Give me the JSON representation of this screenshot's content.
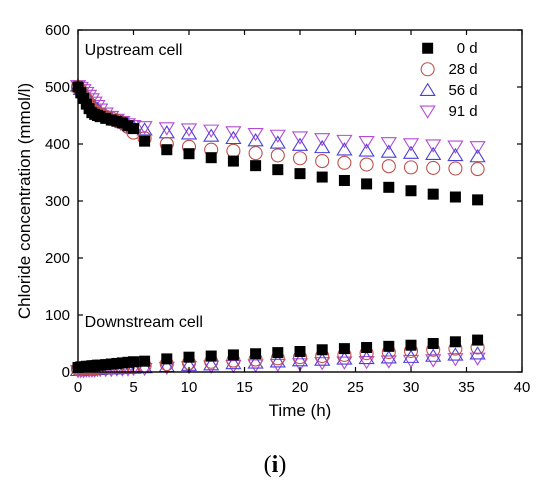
{
  "caption": {
    "open": "(",
    "letter": "i",
    "close": ")"
  },
  "chart_data": {
    "type": "scatter",
    "xlabel": "Time (h)",
    "ylabel": "Chloride concentration (mmol/l)",
    "xlim": [
      0,
      40
    ],
    "ylim": [
      0,
      600
    ],
    "xticks": [
      0,
      5,
      10,
      15,
      20,
      25,
      30,
      35,
      40
    ],
    "yticks": [
      0,
      100,
      200,
      300,
      400,
      500,
      600
    ],
    "grid": false,
    "legend_position": "top-right",
    "annotations": [
      "Upstream cell",
      "Downstream cell"
    ],
    "x": [
      0,
      0.25,
      0.5,
      0.75,
      1,
      1.25,
      1.5,
      1.75,
      2,
      2.5,
      3,
      3.5,
      4,
      4.5,
      5,
      6,
      8,
      10,
      12,
      14,
      16,
      18,
      20,
      22,
      24,
      26,
      28,
      30,
      32,
      34,
      36
    ],
    "series": [
      {
        "name": "0 d",
        "marker": "square-filled",
        "color": "#000000",
        "upstream": [
          500,
          490,
          480,
          470,
          462,
          455,
          452,
          450,
          448,
          445,
          442,
          440,
          437,
          432,
          427,
          405,
          390,
          383,
          376,
          370,
          362,
          355,
          348,
          342,
          336,
          330,
          324,
          318,
          312,
          307,
          302
        ],
        "downstream": [
          8,
          9,
          9,
          10,
          10,
          11,
          11,
          12,
          12,
          13,
          14,
          15,
          16,
          17,
          18,
          19,
          23,
          26,
          28,
          30,
          32,
          34,
          36,
          39,
          41,
          43,
          45,
          47,
          50,
          53,
          56
        ]
      },
      {
        "name": "28 d",
        "marker": "circle-open",
        "color": "#c0504d",
        "upstream": [
          500,
          493,
          485,
          478,
          470,
          462,
          458,
          455,
          452,
          448,
          445,
          441,
          437,
          430,
          420,
          410,
          400,
          395,
          390,
          388,
          384,
          380,
          375,
          370,
          367,
          364,
          361,
          359,
          358,
          357,
          356
        ],
        "downstream": [
          5,
          5,
          6,
          6,
          6,
          7,
          7,
          7,
          8,
          8,
          8,
          9,
          9,
          10,
          10,
          11,
          14,
          16,
          18,
          20,
          22,
          24,
          26,
          28,
          30,
          33,
          35,
          37,
          39,
          41,
          43
        ]
      },
      {
        "name": "56 d",
        "marker": "triangle-up-open",
        "color": "#4a3fd9",
        "upstream": [
          502,
          496,
          490,
          484,
          478,
          472,
          466,
          461,
          456,
          450,
          446,
          442,
          438,
          434,
          430,
          425,
          420,
          418,
          414,
          410,
          406,
          402,
          398,
          394,
          390,
          388,
          386,
          384,
          382,
          380,
          378
        ],
        "downstream": [
          3,
          3,
          4,
          4,
          4,
          5,
          5,
          5,
          5,
          6,
          6,
          6,
          7,
          7,
          7,
          8,
          10,
          12,
          13,
          15,
          16,
          18,
          20,
          21,
          23,
          24,
          25,
          26,
          28,
          30,
          32
        ]
      },
      {
        "name": "91 d",
        "marker": "triangle-down-open",
        "color": "#b34bd6",
        "upstream": [
          502,
          499,
          495,
          490,
          485,
          479,
          473,
          467,
          461,
          454,
          448,
          443,
          439,
          435,
          432,
          430,
          428,
          426,
          424,
          421,
          418,
          415,
          412,
          409,
          406,
          404,
          402,
          400,
          398,
          396,
          395
        ],
        "downstream": [
          2,
          2,
          2,
          3,
          3,
          3,
          3,
          4,
          4,
          4,
          4,
          5,
          5,
          5,
          6,
          6,
          8,
          9,
          10,
          11,
          12,
          13,
          14,
          16,
          17,
          18,
          19,
          20,
          21,
          23,
          24
        ]
      }
    ]
  }
}
